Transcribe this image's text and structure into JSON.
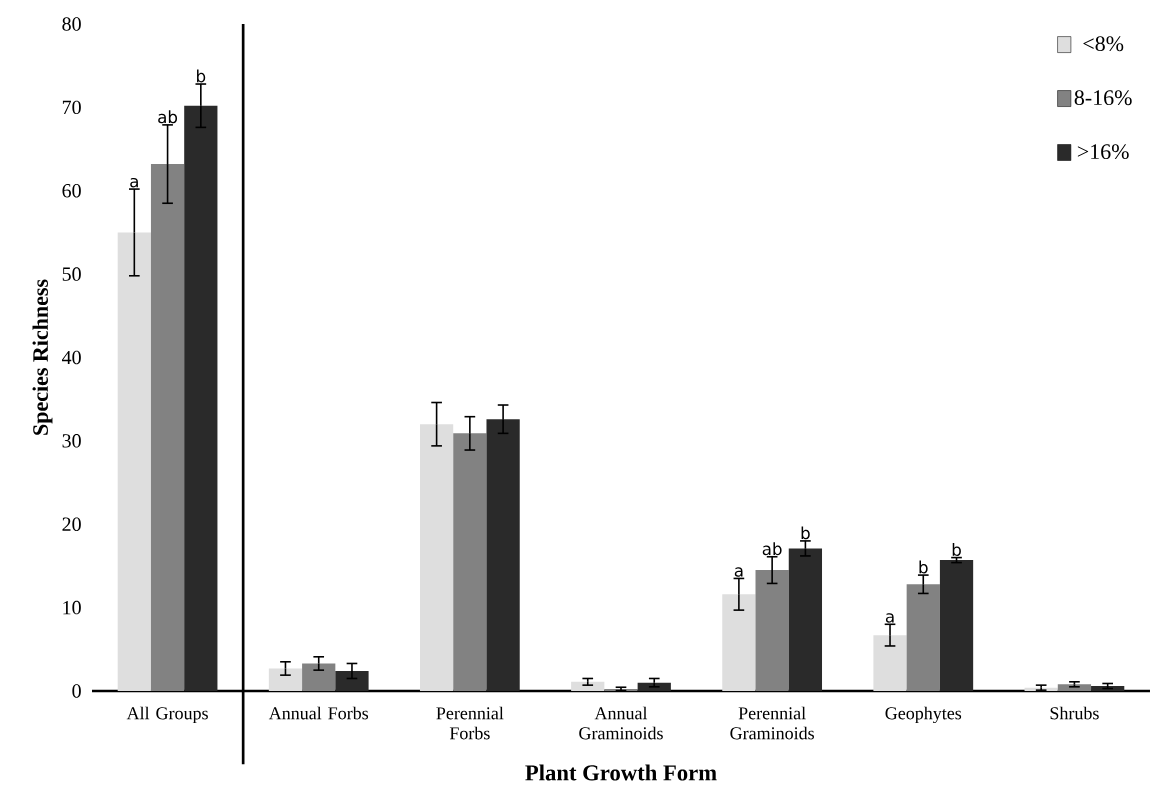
{
  "chart_data": {
    "type": "bar",
    "xlabel": "Plant Growth Form",
    "ylabel": "Species Richness",
    "categories": [
      "All Groups",
      "Annual Forbs",
      "Perennial Forbs",
      "Annual Graminoids",
      "Perennial Graminoids",
      "Geophytes",
      "Shrubs"
    ],
    "series": [
      {
        "name": "<8%",
        "color": "#dedede",
        "values": [
          55,
          2.7,
          32,
          1.1,
          11.6,
          6.7,
          0.4
        ],
        "errors": [
          5.2,
          0.8,
          2.6,
          0.4,
          1.9,
          1.3,
          0.3
        ]
      },
      {
        "name": "8-16%",
        "color": "#828282",
        "values": [
          63.2,
          3.3,
          30.9,
          0.25,
          14.5,
          12.8,
          0.8
        ],
        "errors": [
          4.7,
          0.8,
          2,
          0.2,
          1.6,
          1.1,
          0.3
        ]
      },
      {
        "name": ">16%",
        "color": "#2a2a2a",
        "values": [
          70.2,
          2.4,
          32.6,
          1,
          17.1,
          15.7,
          0.6
        ],
        "errors": [
          2.6,
          0.9,
          1.7,
          0.5,
          0.9,
          0.3,
          0.3
        ]
      }
    ],
    "ylim": [
      0,
      80
    ],
    "yticks": [
      0,
      10,
      20,
      30,
      40,
      50,
      60,
      70,
      80
    ],
    "legend": "top right",
    "annotations": [
      "a",
      "ab",
      "b",
      "a",
      "ab",
      "b",
      "a",
      "b",
      "b"
    ]
  }
}
